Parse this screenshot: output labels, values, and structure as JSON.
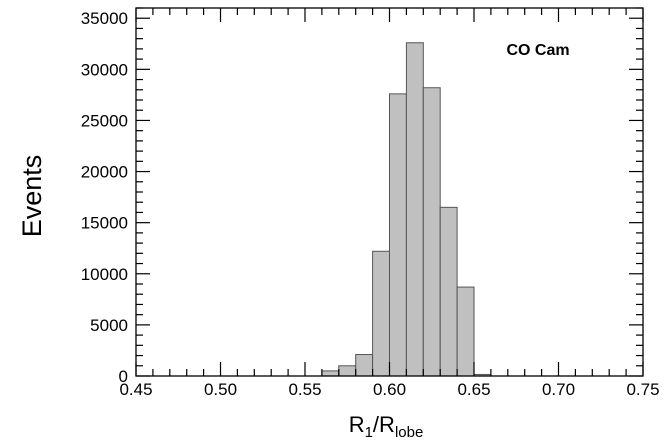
{
  "chart_data": {
    "type": "bar",
    "annotation": "CO Cam",
    "ylabel": "Events",
    "xlabel": {
      "main_1": "R",
      "sub_1": "1",
      "slash": "/",
      "main_2": "R",
      "sub_2": "lobe"
    },
    "xlim": [
      0.45,
      0.75
    ],
    "ylim": [
      0,
      36000
    ],
    "x_ticks": [
      "0.45",
      "0.50",
      "0.55",
      "0.60",
      "0.65",
      "0.70",
      "0.75"
    ],
    "x_tick_values": [
      0.45,
      0.5,
      0.55,
      0.6,
      0.65,
      0.7,
      0.75
    ],
    "y_ticks": [
      "0",
      "5000",
      "10000",
      "15000",
      "20000",
      "25000",
      "30000",
      "35000"
    ],
    "y_tick_values": [
      0,
      5000,
      10000,
      15000,
      20000,
      25000,
      30000,
      35000
    ],
    "bin_width": 0.01,
    "bins": [
      {
        "x0": 0.56,
        "x1": 0.57,
        "value": 500
      },
      {
        "x0": 0.57,
        "x1": 0.58,
        "value": 1000
      },
      {
        "x0": 0.58,
        "x1": 0.59,
        "value": 2100
      },
      {
        "x0": 0.59,
        "x1": 0.6,
        "value": 12200
      },
      {
        "x0": 0.6,
        "x1": 0.61,
        "value": 27600
      },
      {
        "x0": 0.61,
        "x1": 0.62,
        "value": 32600
      },
      {
        "x0": 0.62,
        "x1": 0.63,
        "value": 28200
      },
      {
        "x0": 0.63,
        "x1": 0.64,
        "value": 16500
      },
      {
        "x0": 0.64,
        "x1": 0.65,
        "value": 8700
      },
      {
        "x0": 0.65,
        "x1": 0.66,
        "value": 150
      }
    ],
    "grid": false,
    "colors": {
      "bar_fill": "#c0c0c0",
      "bar_stroke": "#555555",
      "axis": "#000000"
    }
  }
}
